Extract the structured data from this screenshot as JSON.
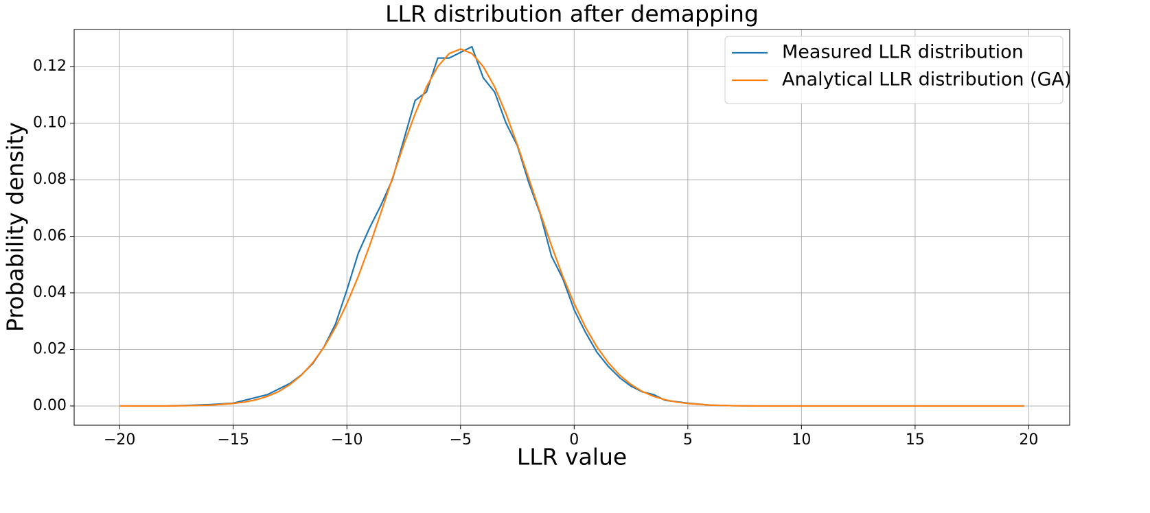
{
  "chart_data": {
    "type": "line",
    "title": "LLR distribution after demapping",
    "x_label": "LLR value",
    "y_label": "Probability density",
    "x": [
      -20,
      -19,
      -18,
      -17,
      -16,
      -15,
      -14.5,
      -14,
      -13.5,
      -13,
      -12.5,
      -12,
      -11.5,
      -11,
      -10.5,
      -10,
      -9.5,
      -9,
      -8.5,
      -8,
      -7.5,
      -7,
      -6.5,
      -6,
      -5.5,
      -5,
      -4.5,
      -4,
      -3.5,
      -3,
      -2.5,
      -2,
      -1.5,
      -1,
      -0.5,
      0,
      0.5,
      1,
      1.5,
      2,
      2.5,
      3,
      3.5,
      4,
      4.5,
      5,
      6,
      7,
      8,
      9,
      10,
      11,
      12,
      13,
      14,
      15,
      16,
      17,
      18,
      19,
      19.8
    ],
    "series": [
      {
        "name": "Measured LLR distribution",
        "color": "#1f77b4",
        "values": [
          0,
          0,
          0,
          0.0002,
          0.0005,
          0.001,
          0.002,
          0.003,
          0.004,
          0.006,
          0.008,
          0.011,
          0.015,
          0.021,
          0.029,
          0.041,
          0.054,
          0.063,
          0.071,
          0.08,
          0.094,
          0.108,
          0.111,
          0.123,
          0.123,
          0.125,
          0.127,
          0.116,
          0.111,
          0.1,
          0.092,
          0.079,
          0.068,
          0.053,
          0.045,
          0.034,
          0.026,
          0.019,
          0.014,
          0.01,
          0.007,
          0.005,
          0.004,
          0.002,
          0.0015,
          0.001,
          0.0003,
          0.0001,
          0,
          0,
          0,
          0,
          0,
          0,
          0,
          0,
          0,
          0,
          0,
          0,
          0
        ]
      },
      {
        "name": "Analytical LLR distribution (GA)",
        "color": "#ff7f0e",
        "values": [
          0,
          0,
          0,
          0.0001,
          0.0003,
          0.0009,
          0.0014,
          0.0022,
          0.0034,
          0.0051,
          0.0076,
          0.0109,
          0.0153,
          0.0209,
          0.0278,
          0.0362,
          0.0458,
          0.0567,
          0.0684,
          0.0805,
          0.0923,
          0.1033,
          0.1128,
          0.12,
          0.1246,
          0.1262,
          0.1246,
          0.12,
          0.1128,
          0.1033,
          0.0923,
          0.0805,
          0.0684,
          0.0567,
          0.0458,
          0.0362,
          0.0278,
          0.0209,
          0.0153,
          0.0109,
          0.0076,
          0.0051,
          0.0034,
          0.0022,
          0.0014,
          0.0009,
          0.0003,
          0.0001,
          0,
          0,
          0,
          0,
          0,
          0,
          0,
          0,
          0,
          0,
          0,
          0,
          0
        ]
      }
    ],
    "xlim": [
      -22,
      21.8
    ],
    "ylim": [
      -0.0068,
      0.1331
    ],
    "xticks": [
      {
        "value": -20,
        "label": "−20"
      },
      {
        "value": -15,
        "label": "−15"
      },
      {
        "value": -10,
        "label": "−10"
      },
      {
        "value": -5,
        "label": "−5"
      },
      0,
      5,
      10,
      15,
      20
    ],
    "yticks": [
      {
        "value": 0,
        "label": "0.00"
      },
      {
        "value": 0.02,
        "label": "0.02"
      },
      {
        "value": 0.04,
        "label": "0.04"
      },
      {
        "value": 0.06,
        "label": "0.06"
      },
      {
        "value": 0.08,
        "label": "0.08"
      },
      {
        "value": 0.1,
        "label": "0.10"
      },
      {
        "value": 0.12,
        "label": "0.12"
      }
    ],
    "grid": true,
    "legend": "upper-right"
  }
}
